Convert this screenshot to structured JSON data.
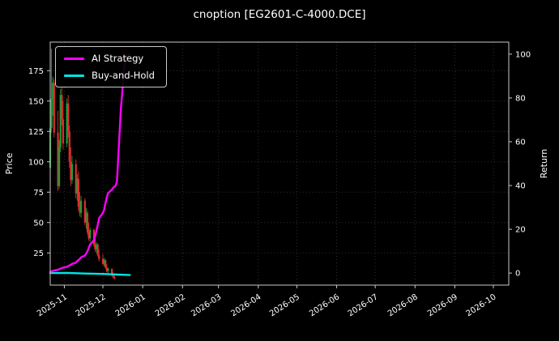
{
  "title": "cnoption [EG2601-C-4000.DCE]",
  "chart_data": {
    "type": "candlestick+line",
    "title": "cnoption [EG2601-C-4000.DCE]",
    "background": "#000000",
    "text_color": "#ffffff",
    "spine_color": "#c8c8c8",
    "grid": {
      "on": true,
      "style": "dotted",
      "color": "#2e2e2e"
    },
    "x_axis": {
      "range": [
        "2025-10-21",
        "2026-10-13"
      ],
      "ticks": [
        {
          "label": "2025-11",
          "date": "2025-11-01"
        },
        {
          "label": "2025-12",
          "date": "2025-12-01"
        },
        {
          "label": "2026-01",
          "date": "2026-01-01"
        },
        {
          "label": "2026-02",
          "date": "2026-02-01"
        },
        {
          "label": "2026-03",
          "date": "2026-03-01"
        },
        {
          "label": "2026-04",
          "date": "2026-04-01"
        },
        {
          "label": "2026-05",
          "date": "2026-05-01"
        },
        {
          "label": "2026-06",
          "date": "2026-06-01"
        },
        {
          "label": "2026-07",
          "date": "2026-07-01"
        },
        {
          "label": "2026-08",
          "date": "2026-08-01"
        },
        {
          "label": "2026-09",
          "date": "2026-09-01"
        },
        {
          "label": "2026-10",
          "date": "2026-10-01"
        }
      ]
    },
    "left_axis": {
      "label": "Price",
      "ticks": [
        25,
        50,
        75,
        100,
        125,
        150,
        175
      ],
      "range": [
        -1.5,
        198.5
      ]
    },
    "right_axis": {
      "label": "Return",
      "ticks": [
        0,
        20,
        40,
        60,
        80,
        100
      ],
      "range": [
        -5.5,
        105.5
      ]
    },
    "legend": {
      "position": "upper-left",
      "items": [
        {
          "label": "AI Strategy",
          "color": "#ff00ff"
        },
        {
          "label": "Buy-and-Hold",
          "color": "#00e6e6"
        }
      ]
    },
    "candles": {
      "columns": [
        "date",
        "open",
        "high",
        "low",
        "close"
      ],
      "up_color": "#18a038",
      "down_color": "#e02f2f",
      "data": [
        [
          "2025-10-21",
          95,
          132,
          90,
          128
        ],
        [
          "2025-10-22",
          128,
          193,
          124,
          152
        ],
        [
          "2025-10-23",
          152,
          170,
          138,
          165
        ],
        [
          "2025-10-24",
          165,
          168,
          120,
          124
        ],
        [
          "2025-10-27",
          124,
          142,
          76,
          80
        ],
        [
          "2025-10-28",
          80,
          118,
          78,
          112
        ],
        [
          "2025-10-29",
          112,
          160,
          108,
          155
        ],
        [
          "2025-10-30",
          155,
          162,
          130,
          135
        ],
        [
          "2025-10-31",
          135,
          150,
          110,
          115
        ],
        [
          "2025-11-03",
          115,
          152,
          112,
          148
        ],
        [
          "2025-11-04",
          148,
          155,
          120,
          125
        ],
        [
          "2025-11-05",
          125,
          130,
          95,
          100
        ],
        [
          "2025-11-06",
          100,
          112,
          80,
          85
        ],
        [
          "2025-11-07",
          85,
          105,
          82,
          98
        ],
        [
          "2025-11-10",
          98,
          102,
          70,
          74
        ],
        [
          "2025-11-11",
          74,
          90,
          68,
          86
        ],
        [
          "2025-11-12",
          86,
          92,
          60,
          63
        ],
        [
          "2025-11-13",
          63,
          75,
          55,
          58
        ],
        [
          "2025-11-14",
          58,
          72,
          54,
          68
        ],
        [
          "2025-11-17",
          68,
          70,
          48,
          50
        ],
        [
          "2025-11-18",
          50,
          62,
          45,
          58
        ],
        [
          "2025-11-19",
          58,
          60,
          40,
          42
        ],
        [
          "2025-11-20",
          42,
          50,
          35,
          37
        ],
        [
          "2025-11-21",
          37,
          46,
          34,
          44
        ],
        [
          "2025-11-24",
          44,
          45,
          30,
          32
        ],
        [
          "2025-11-25",
          32,
          38,
          26,
          28
        ],
        [
          "2025-11-26",
          28,
          34,
          25,
          32
        ],
        [
          "2025-11-27",
          32,
          33,
          22,
          23
        ],
        [
          "2025-11-28",
          23,
          28,
          18,
          20
        ],
        [
          "2025-12-01",
          20,
          24,
          15,
          16
        ],
        [
          "2025-12-02",
          16,
          21,
          14,
          19
        ],
        [
          "2025-12-03",
          19,
          20,
          12,
          13
        ],
        [
          "2025-12-04",
          13,
          16,
          9,
          10
        ],
        [
          "2025-12-05",
          10,
          13,
          8,
          12
        ],
        [
          "2025-12-08",
          12,
          12,
          6,
          7
        ],
        [
          "2025-12-09",
          7,
          9,
          4,
          5
        ],
        [
          "2025-12-10",
          5,
          8,
          3,
          4
        ]
      ]
    },
    "series": [
      {
        "name": "AI Strategy",
        "color": "#ff00ff",
        "axis": "right",
        "data": [
          [
            "2025-10-21",
            0.5
          ],
          [
            "2025-10-22",
            0.8
          ],
          [
            "2025-10-23",
            1.0
          ],
          [
            "2025-10-24",
            1.2
          ],
          [
            "2025-10-27",
            1.5
          ],
          [
            "2025-10-28",
            1.8
          ],
          [
            "2025-10-29",
            2.0
          ],
          [
            "2025-10-30",
            2.3
          ],
          [
            "2025-10-31",
            2.5
          ],
          [
            "2025-11-03",
            2.8
          ],
          [
            "2025-11-04",
            3.2
          ],
          [
            "2025-11-05",
            3.5
          ],
          [
            "2025-11-06",
            3.8
          ],
          [
            "2025-11-07",
            4.2
          ],
          [
            "2025-11-10",
            4.8
          ],
          [
            "2025-11-11",
            5.5
          ],
          [
            "2025-11-12",
            6.0
          ],
          [
            "2025-11-13",
            6.5
          ],
          [
            "2025-11-14",
            7.2
          ],
          [
            "2025-11-17",
            8.0
          ],
          [
            "2025-11-18",
            9.0
          ],
          [
            "2025-11-19",
            10.0
          ],
          [
            "2025-11-20",
            11.5
          ],
          [
            "2025-11-21",
            13.0
          ],
          [
            "2025-11-24",
            15.0
          ],
          [
            "2025-11-25",
            17.0
          ],
          [
            "2025-11-26",
            19.5
          ],
          [
            "2025-11-27",
            22.0
          ],
          [
            "2025-11-28",
            25.0
          ],
          [
            "2025-12-01",
            27.5
          ],
          [
            "2025-12-02",
            29.0
          ],
          [
            "2025-12-03",
            32.0
          ],
          [
            "2025-12-04",
            34.5
          ],
          [
            "2025-12-05",
            36.5
          ],
          [
            "2025-12-08",
            38.0
          ],
          [
            "2025-12-09",
            39.0
          ],
          [
            "2025-12-10",
            39.5
          ],
          [
            "2025-12-11",
            40.0
          ],
          [
            "2025-12-12",
            42.0
          ],
          [
            "2025-12-15",
            75.0
          ],
          [
            "2025-12-16",
            82.0
          ],
          [
            "2025-12-17",
            90.0
          ],
          [
            "2025-12-18",
            96.0
          ],
          [
            "2025-12-19",
            99.0
          ],
          [
            "2025-12-22",
            100.0
          ]
        ]
      },
      {
        "name": "Buy-and-Hold",
        "color": "#00e6e6",
        "axis": "right",
        "data": [
          [
            "2025-10-21",
            0.0
          ],
          [
            "2025-11-03",
            0.1
          ],
          [
            "2025-11-17",
            -0.2
          ],
          [
            "2025-12-01",
            -0.4
          ],
          [
            "2025-12-10",
            -0.6
          ],
          [
            "2025-12-22",
            -0.9
          ]
        ]
      }
    ]
  }
}
